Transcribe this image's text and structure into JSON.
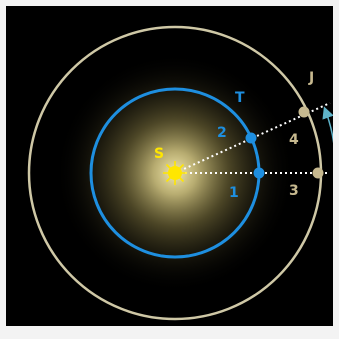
{
  "diagram": {
    "sun_label": "S",
    "earth_orbit_label": "T",
    "jupiter_orbit_label": "J",
    "earth_positions": [
      "1",
      "2"
    ],
    "jupiter_positions": [
      "3",
      "4"
    ],
    "colors": {
      "background": "#000000",
      "earth_orbit": "#1e8fe0",
      "earth_label": "#1e8fe0",
      "jupiter_orbit": "#cfc8a6",
      "jupiter_label": "#c7b98f",
      "sun": "#ffe600",
      "glow": "#fff2b0",
      "sight_line": "#ffffff",
      "direction_arrow": "#5fb3c9"
    }
  }
}
